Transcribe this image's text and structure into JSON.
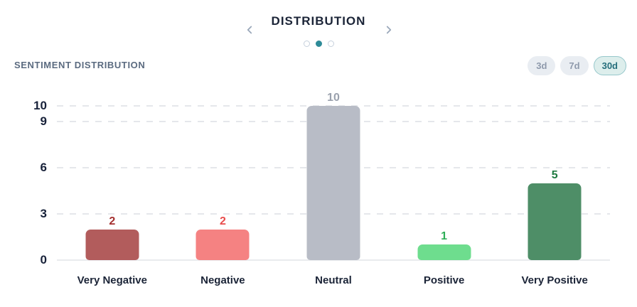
{
  "carousel": {
    "title": "DISTRIBUTION",
    "prev_icon": "chevron-left",
    "next_icon": "chevron-right",
    "dots": [
      {
        "active": false
      },
      {
        "active": true
      },
      {
        "active": false
      }
    ]
  },
  "panel": {
    "heading": "SENTIMENT DISTRIBUTION",
    "range_buttons": [
      {
        "label": "3d",
        "selected": false
      },
      {
        "label": "7d",
        "selected": false
      },
      {
        "label": "30d",
        "selected": true
      }
    ]
  },
  "colors": {
    "accent_teal": "#2e8b98",
    "selected_pill_bg": "#ddeeec",
    "selected_pill_border": "#96c7cb",
    "selected_pill_text": "#256e7b",
    "pill_bg": "#e9edf2",
    "pill_text": "#8f9aac",
    "heading_text": "#5b6b80",
    "dark_text": "#1b2437",
    "gridline": "#e5e7eb"
  },
  "chart_data": {
    "type": "bar",
    "title": "SENTIMENT DISTRIBUTION",
    "categories": [
      "Very Negative",
      "Negative",
      "Neutral",
      "Positive",
      "Very Positive"
    ],
    "values": [
      2,
      2,
      10,
      1,
      5
    ],
    "bar_colors": [
      "#b25c5c",
      "#f58282",
      "#b8bcc6",
      "#6edd8e",
      "#4e8e67"
    ],
    "value_label_colors": [
      "#a32e2e",
      "#e84c4c",
      "#9aa1ad",
      "#2eae57",
      "#1e7a40"
    ],
    "xlabel": "",
    "ylabel": "",
    "yticks": [
      0,
      3,
      6,
      9,
      10
    ],
    "ylim": [
      0,
      10.5
    ],
    "grid": "dashed-horizontal",
    "legend": "none"
  }
}
